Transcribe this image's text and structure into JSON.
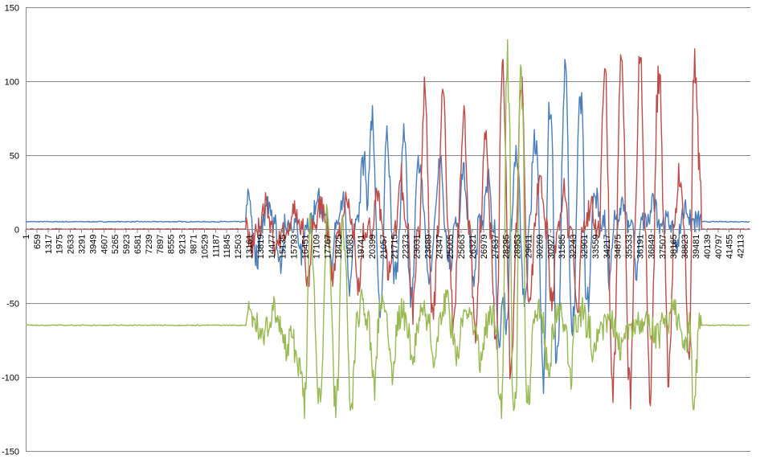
{
  "chart_data": {
    "type": "line",
    "title": "",
    "xlabel": "",
    "ylabel": "",
    "ylim": [
      -150,
      150
    ],
    "y_ticks": [
      -150,
      -100,
      -50,
      0,
      50,
      100,
      150
    ],
    "x_categories": [
      "1",
      "659",
      "1317",
      "1975",
      "2633",
      "3291",
      "3949",
      "4607",
      "5265",
      "5923",
      "6581",
      "7239",
      "7897",
      "8555",
      "9213",
      "9871",
      "10529",
      "11187",
      "11845",
      "12503",
      "13161",
      "13819",
      "14477",
      "15135",
      "15793",
      "16451",
      "17109",
      "17767",
      "18425",
      "19083",
      "19741",
      "20399",
      "21057",
      "21715",
      "22373",
      "23031",
      "23689",
      "24347",
      "25005",
      "25663",
      "26321",
      "26979",
      "27637",
      "28295",
      "28953",
      "29611",
      "30269",
      "30927",
      "31585",
      "32243",
      "32901",
      "33559",
      "34217",
      "34875",
      "35533",
      "36191",
      "36849",
      "37507",
      "38165",
      "38823",
      "39481",
      "40139",
      "40797",
      "41455",
      "42113"
    ],
    "x_range": [
      1,
      42700
    ],
    "grid": "horizontal",
    "legend": "none",
    "series": [
      {
        "color": "#4a7ebb",
        "baseline": 5,
        "spikes": [
          [
            13100,
            24
          ],
          [
            13600,
            -25
          ],
          [
            14300,
            20
          ],
          [
            15000,
            -28
          ],
          [
            16200,
            -20
          ],
          [
            17200,
            25
          ],
          [
            18000,
            -28
          ],
          [
            18700,
            20
          ],
          [
            19100,
            -45
          ],
          [
            19900,
            55
          ],
          [
            20400,
            80
          ],
          [
            20900,
            -60
          ],
          [
            21300,
            65
          ],
          [
            21800,
            -40
          ],
          [
            22300,
            70
          ],
          [
            22700,
            -55
          ],
          [
            23200,
            58
          ],
          [
            23800,
            -45
          ],
          [
            24400,
            50
          ],
          [
            25000,
            -30
          ],
          [
            25800,
            45
          ],
          [
            26400,
            -40
          ],
          [
            27200,
            40
          ],
          [
            27900,
            -90
          ],
          [
            28300,
            -75
          ],
          [
            28900,
            55
          ],
          [
            29400,
            -60
          ],
          [
            30000,
            70
          ],
          [
            30500,
            -110
          ],
          [
            30900,
            95
          ],
          [
            31300,
            -100
          ],
          [
            31800,
            115
          ],
          [
            32200,
            -80
          ],
          [
            32700,
            105
          ],
          [
            33100,
            -60
          ],
          [
            33600,
            25
          ],
          [
            34400,
            -40
          ],
          [
            35200,
            20
          ],
          [
            36000,
            -30
          ],
          [
            37000,
            20
          ],
          [
            38300,
            -15
          ],
          [
            38900,
            15
          ]
        ]
      },
      {
        "color": "#be4b48",
        "baseline": 0,
        "spikes": [
          [
            13300,
            -15
          ],
          [
            14100,
            20
          ],
          [
            14800,
            -15
          ],
          [
            15800,
            15
          ],
          [
            16600,
            -45
          ],
          [
            17400,
            20
          ],
          [
            18100,
            -40
          ],
          [
            18900,
            25
          ],
          [
            19600,
            -50
          ],
          [
            20700,
            30
          ],
          [
            21400,
            -30
          ],
          [
            22100,
            40
          ],
          [
            22800,
            -60
          ],
          [
            23500,
            100
          ],
          [
            24000,
            -65
          ],
          [
            24600,
            110
          ],
          [
            25200,
            -70
          ],
          [
            25800,
            90
          ],
          [
            26500,
            -80
          ],
          [
            27100,
            75
          ],
          [
            27700,
            -85
          ],
          [
            28100,
            115
          ],
          [
            28600,
            -105
          ],
          [
            29200,
            105
          ],
          [
            29700,
            -60
          ],
          [
            30300,
            40
          ],
          [
            31000,
            -55
          ],
          [
            31700,
            30
          ],
          [
            32500,
            -65
          ],
          [
            33300,
            20
          ],
          [
            34100,
            130
          ],
          [
            34600,
            -130
          ],
          [
            35100,
            130
          ],
          [
            35600,
            -125
          ],
          [
            36200,
            130
          ],
          [
            36800,
            -125
          ],
          [
            37300,
            130
          ],
          [
            37900,
            -115
          ],
          [
            38500,
            40
          ],
          [
            39100,
            -100
          ],
          [
            39400,
            130
          ],
          [
            39700,
            45
          ]
        ]
      },
      {
        "color": "#98b954",
        "baseline": -65,
        "spikes": [
          [
            13200,
            -55
          ],
          [
            14000,
            -75
          ],
          [
            14700,
            -50
          ],
          [
            15400,
            -80
          ],
          [
            16000,
            -100
          ],
          [
            16400,
            -128
          ],
          [
            16800,
            18
          ],
          [
            17300,
            -128
          ],
          [
            17800,
            18
          ],
          [
            18300,
            -128
          ],
          [
            18700,
            18
          ],
          [
            19200,
            -128
          ],
          [
            19800,
            -45
          ],
          [
            20500,
            -110
          ],
          [
            21000,
            -50
          ],
          [
            21600,
            -100
          ],
          [
            22200,
            -55
          ],
          [
            22800,
            -95
          ],
          [
            23400,
            -50
          ],
          [
            24100,
            -90
          ],
          [
            24800,
            -45
          ],
          [
            25400,
            -85
          ],
          [
            26000,
            -50
          ],
          [
            26800,
            -95
          ],
          [
            27500,
            -55
          ],
          [
            28000,
            -128
          ],
          [
            28400,
            128
          ],
          [
            28800,
            -128
          ],
          [
            29200,
            128
          ],
          [
            29600,
            -128
          ],
          [
            30100,
            -50
          ],
          [
            30800,
            -100
          ],
          [
            31400,
            -55
          ],
          [
            32100,
            -105
          ],
          [
            32800,
            -55
          ],
          [
            33500,
            -85
          ],
          [
            34300,
            -60
          ],
          [
            35000,
            -80
          ],
          [
            36000,
            -60
          ],
          [
            37200,
            -75
          ],
          [
            38200,
            -50
          ],
          [
            38800,
            -85
          ],
          [
            39400,
            -128
          ],
          [
            39600,
            -55
          ]
        ]
      }
    ]
  }
}
